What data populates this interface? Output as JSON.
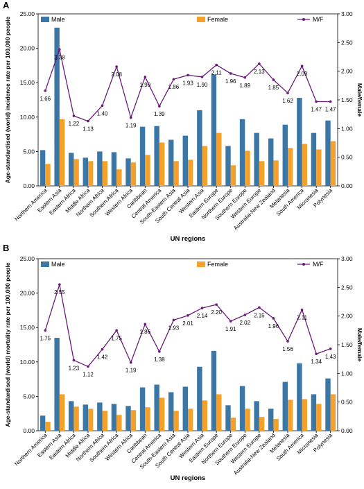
{
  "colors": {
    "male": "#3a77a6",
    "female": "#f5a02a",
    "ratio": "#6a1b7a"
  },
  "chart_data": [
    {
      "panel": "A",
      "type": "bar",
      "xlabel": "UN regions",
      "ylabel": "Age-standardised (world) incidence rate per 100,000 people",
      "y2label": "Male/female",
      "ylim": [
        0,
        25
      ],
      "yticks": [
        "0.00",
        "5.00",
        "10.00",
        "15.00",
        "20.00",
        "25.00"
      ],
      "y2lim": [
        0,
        3
      ],
      "y2ticks": [
        "0.00",
        "0.50",
        "1.00",
        "1.50",
        "2.00",
        "2.50",
        "3.00"
      ],
      "legend": [
        "Male",
        "Female",
        "M/F"
      ],
      "categories": [
        "Northern America",
        "Eastern Asia",
        "Eastern Africa",
        "Middle Africa",
        "Northern Africa",
        "Southern Africa",
        "Western Africa",
        "Caribbean",
        "Central America",
        "South-Eastern Asia",
        "South Central Asia",
        "Western Asia",
        "Eastern Europe",
        "Northern Europe",
        "Southern Europe",
        "Western Europe",
        "Australia-New Zealand",
        "Melanesia",
        "South America",
        "Micronesia",
        "Polynesia"
      ],
      "series": [
        {
          "name": "Male",
          "values": [
            5.2,
            23.0,
            4.8,
            4.1,
            5.0,
            4.9,
            4.0,
            8.6,
            8.7,
            6.7,
            7.3,
            11.0,
            16.2,
            5.8,
            9.7,
            7.7,
            6.9,
            8.9,
            12.8,
            7.7,
            9.5
          ]
        },
        {
          "name": "Female",
          "values": [
            3.2,
            9.7,
            3.9,
            3.6,
            3.6,
            2.4,
            3.4,
            4.5,
            6.3,
            3.6,
            3.8,
            5.8,
            7.7,
            3.0,
            5.1,
            3.6,
            3.7,
            5.5,
            6.1,
            5.3,
            6.5
          ]
        },
        {
          "name": "M/F",
          "axis": "right",
          "values": [
            1.66,
            2.38,
            1.22,
            1.13,
            1.4,
            2.08,
            1.19,
            1.9,
            1.39,
            1.86,
            1.93,
            1.9,
            2.11,
            1.96,
            1.89,
            2.13,
            1.85,
            1.62,
            2.09,
            1.47,
            1.47
          ]
        }
      ],
      "labels": [
        "1.66",
        "2.38",
        "1.22",
        "1.13",
        "1.40",
        "2.08",
        "1.19",
        "1.90",
        "1.39",
        "1.86",
        "1.93",
        "1.90",
        "2.11",
        "1.96",
        "1.89",
        "2.13",
        "1.85",
        "1.62",
        "2.09",
        "1.47",
        "1.47"
      ]
    },
    {
      "panel": "B",
      "type": "bar",
      "xlabel": "UN regions",
      "ylabel": "Age-standardised (world) mortality rate per 100,000 people",
      "y2label": "Male/female",
      "ylim": [
        0,
        25
      ],
      "yticks": [
        "0.00",
        "5.00",
        "10.00",
        "15.00",
        "20.00",
        "25.00"
      ],
      "y2lim": [
        0,
        3
      ],
      "y2ticks": [
        "0.00",
        "0.50",
        "1.00",
        "1.50",
        "2.00",
        "2.50",
        "3.00"
      ],
      "legend": [
        "Male",
        "Female",
        "M/F"
      ],
      "categories": [
        "Northern America",
        "Eastern Asia",
        "Eastern Africa",
        "Middle Africa",
        "Northern Africa",
        "Southern Africa",
        "Western Africa",
        "Caribbean",
        "Central America",
        "South-Eastern Asia",
        "South Central Asia",
        "Western Asia",
        "Eastern Europe",
        "Northern Europe",
        "Southern Europe",
        "Western Europe",
        "Australia-New Zealand",
        "Melanesia",
        "South America",
        "Micronesia",
        "Polynesia"
      ],
      "series": [
        {
          "name": "Male",
          "values": [
            2.2,
            13.5,
            4.3,
            3.8,
            4.1,
            3.9,
            3.6,
            6.3,
            6.7,
            5.6,
            6.4,
            9.3,
            11.6,
            3.7,
            6.5,
            4.3,
            3.2,
            7.1,
            9.8,
            5.3,
            7.6
          ]
        },
        {
          "name": "Female",
          "values": [
            1.3,
            5.3,
            3.5,
            3.2,
            2.9,
            2.3,
            3.0,
            3.4,
            4.8,
            2.9,
            3.2,
            4.4,
            5.3,
            1.9,
            3.2,
            2.0,
            1.7,
            4.5,
            4.6,
            3.9,
            5.3
          ]
        },
        {
          "name": "M/F",
          "axis": "right",
          "values": [
            1.75,
            2.55,
            1.23,
            1.12,
            1.42,
            1.75,
            1.19,
            1.86,
            1.38,
            1.93,
            2.01,
            2.14,
            2.2,
            1.91,
            2.02,
            2.15,
            1.96,
            1.56,
            2.11,
            1.34,
            1.43
          ]
        }
      ],
      "labels": [
        "1.75",
        "2.55",
        "1.23",
        "1.12",
        "1.42",
        "1.75",
        "1.19",
        "1.86",
        "1.38",
        "1.93",
        "2.01",
        "2.14",
        "2.20",
        "1.91",
        "2.02",
        "2.15",
        "1.96",
        "1.56",
        "2.11",
        "1.34",
        "1.43"
      ]
    }
  ]
}
